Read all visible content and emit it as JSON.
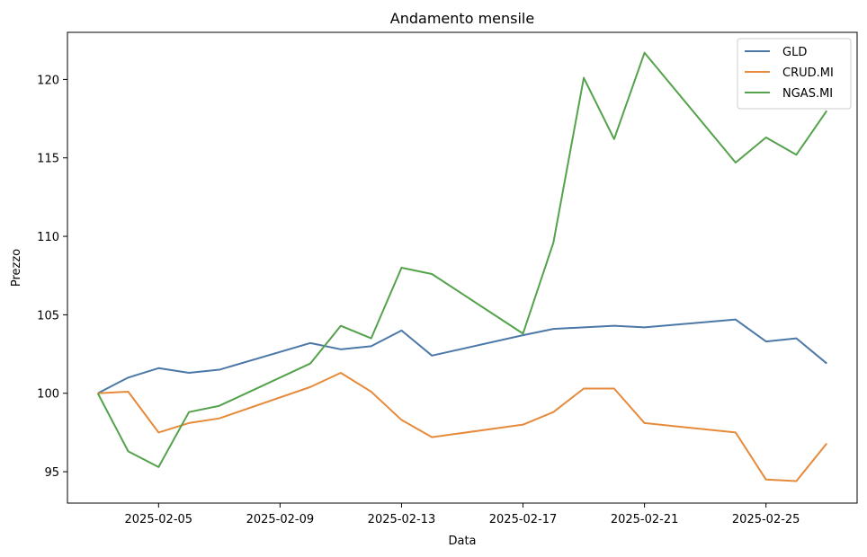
{
  "chart_data": {
    "type": "line",
    "title": "Andamento mensile",
    "xlabel": "Data",
    "ylabel": "Prezzo",
    "xlim": [
      "2025-02-02",
      "2025-02-28"
    ],
    "ylim": [
      93.0,
      123.0
    ],
    "xticks": [
      "2025-02-05",
      "2025-02-09",
      "2025-02-13",
      "2025-02-17",
      "2025-02-21",
      "2025-02-25"
    ],
    "yticks": [
      95,
      100,
      105,
      110,
      115,
      120
    ],
    "grid": false,
    "legend_position": "top-right",
    "x": [
      "2025-02-03",
      "2025-02-04",
      "2025-02-05",
      "2025-02-06",
      "2025-02-07",
      "2025-02-10",
      "2025-02-11",
      "2025-02-12",
      "2025-02-13",
      "2025-02-14",
      "2025-02-17",
      "2025-02-18",
      "2025-02-19",
      "2025-02-20",
      "2025-02-21",
      "2025-02-24",
      "2025-02-25",
      "2025-02-26",
      "2025-02-27"
    ],
    "series": [
      {
        "name": "GLD",
        "color": "#4c78a8",
        "values": [
          100.0,
          101.0,
          101.6,
          101.3,
          101.5,
          103.2,
          102.8,
          103.0,
          104.0,
          102.4,
          103.7,
          104.1,
          104.2,
          104.3,
          104.2,
          104.7,
          103.3,
          103.5,
          101.9
        ]
      },
      {
        "name": "CRUD.MI",
        "color": "#e68a3c",
        "values": [
          100.0,
          100.1,
          97.5,
          98.1,
          98.4,
          100.4,
          101.3,
          100.1,
          98.3,
          97.2,
          98.0,
          98.8,
          100.3,
          100.3,
          98.1,
          97.5,
          94.5,
          94.4,
          96.8
        ]
      },
      {
        "name": "NGAS.MI",
        "color": "#54a24b",
        "values": [
          100.0,
          96.3,
          95.3,
          98.8,
          99.2,
          101.9,
          104.3,
          103.5,
          108.0,
          107.6,
          103.8,
          109.6,
          120.1,
          116.2,
          121.7,
          114.7,
          116.3,
          115.2,
          118.0
        ]
      }
    ]
  }
}
